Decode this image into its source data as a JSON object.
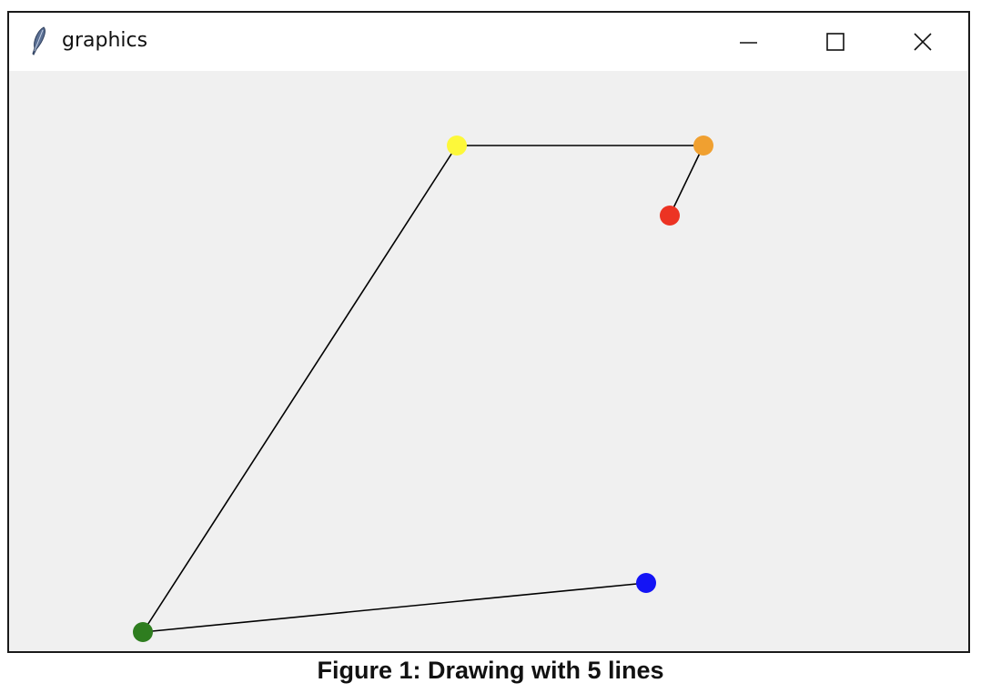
{
  "window": {
    "title": "graphics",
    "icon": "feather-icon",
    "controls": {
      "minimize_icon": "minimize-icon",
      "maximize_icon": "maximize-icon",
      "close_icon": "close-icon"
    }
  },
  "drawing": {
    "background": "#f0f0f0",
    "line_color": "#000000",
    "points": [
      {
        "name": "red",
        "color": "#ec3323"
      },
      {
        "name": "orange",
        "color": "#f0a030"
      },
      {
        "name": "yellow",
        "color": "#fdf83a"
      },
      {
        "name": "green",
        "color": "#2e7d1f"
      },
      {
        "name": "blue",
        "color": "#1414f5"
      }
    ]
  },
  "caption": "Figure 1: Drawing with 5 lines"
}
